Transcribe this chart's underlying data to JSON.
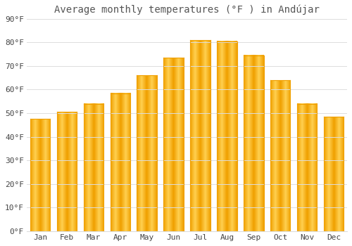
{
  "title": "Average monthly temperatures (°F ) in Andújar",
  "months": [
    "Jan",
    "Feb",
    "Mar",
    "Apr",
    "May",
    "Jun",
    "Jul",
    "Aug",
    "Sep",
    "Oct",
    "Nov",
    "Dec"
  ],
  "values": [
    47.5,
    50.5,
    54.0,
    58.5,
    66.0,
    73.5,
    81.0,
    80.5,
    74.5,
    64.0,
    54.0,
    48.5
  ],
  "bar_color_center": "#FFD050",
  "bar_color_edge": "#F0A000",
  "background_color": "#FFFFFF",
  "grid_color": "#DDDDDD",
  "text_color": "#444444",
  "title_color": "#555555",
  "ylim": [
    0,
    90
  ],
  "ytick_step": 10,
  "title_fontsize": 10,
  "tick_fontsize": 8,
  "bar_width": 0.75
}
